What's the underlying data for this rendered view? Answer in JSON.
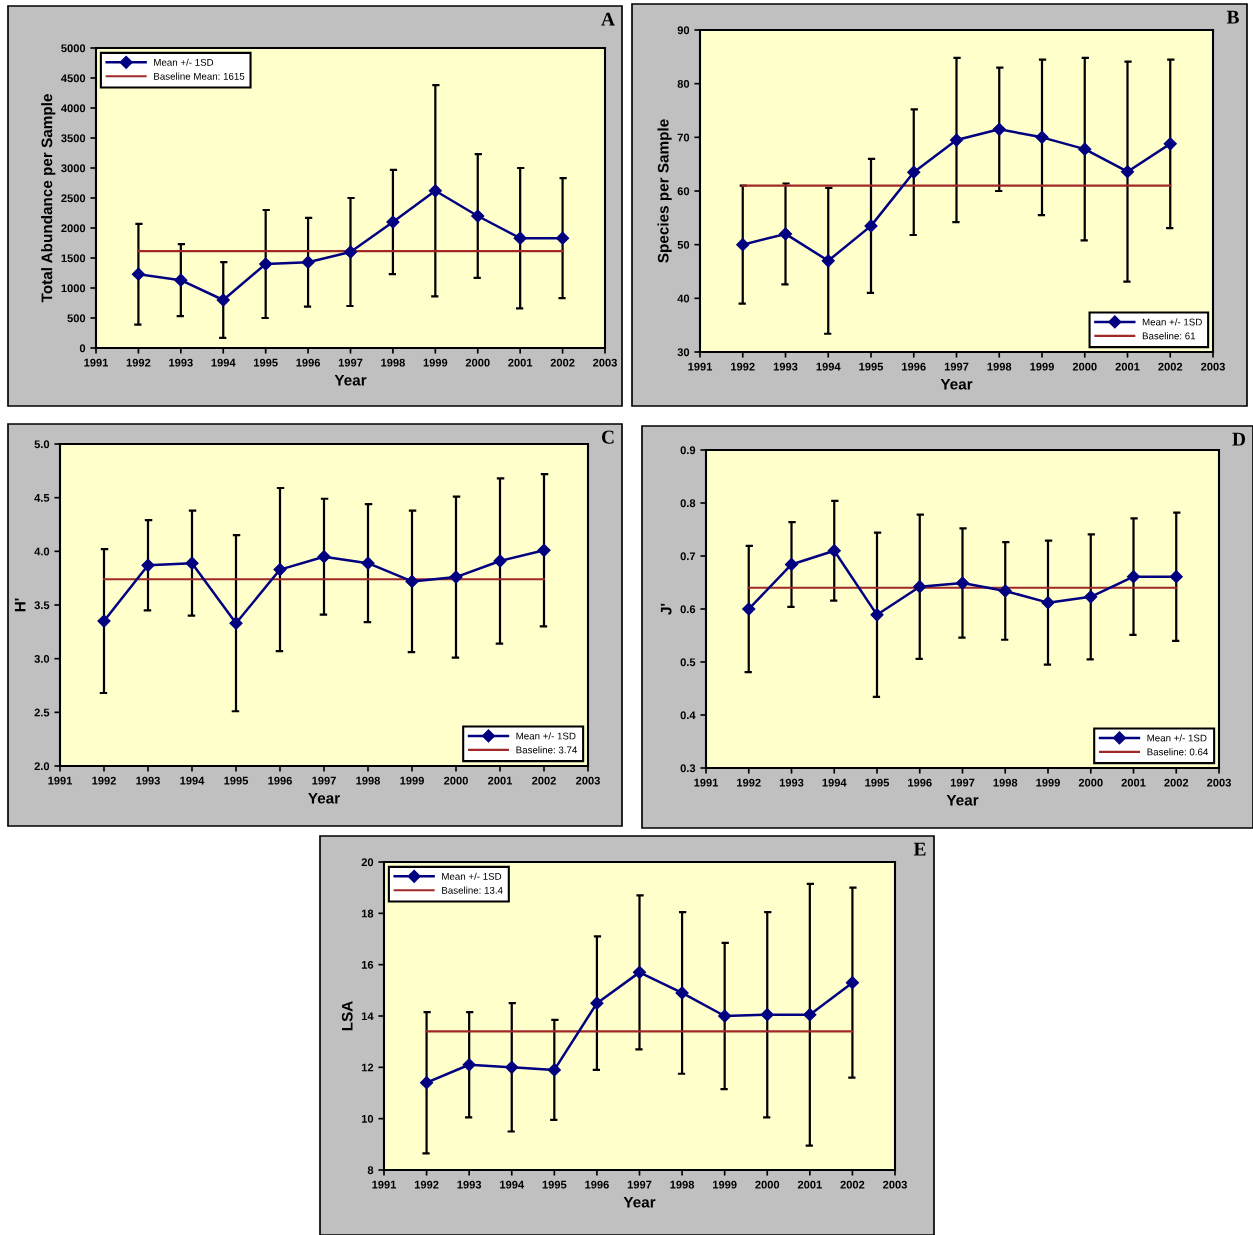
{
  "chart_data": [
    {
      "type": "line",
      "title": "A",
      "xlabel": "Year",
      "ylabel": "Total Abundance per Sample",
      "x": [
        1992,
        1993,
        1994,
        1995,
        1996,
        1997,
        1998,
        1999,
        2000,
        2001,
        2002
      ],
      "xlim": [
        1991,
        2003
      ],
      "xticks": [
        1991,
        1992,
        1993,
        1994,
        1995,
        1996,
        1997,
        1998,
        1999,
        2000,
        2001,
        2002,
        2003
      ],
      "ylim": [
        0,
        5000
      ],
      "yticks": [
        0,
        500,
        1000,
        1500,
        2000,
        2500,
        3000,
        3500,
        4000,
        4500,
        5000
      ],
      "series": [
        {
          "name": "Mean +/- 1SD",
          "color": "#000080",
          "values": [
            1230,
            1130,
            800,
            1400,
            1430,
            1600,
            2100,
            2620,
            2200,
            1830,
            1830
          ],
          "errors": [
            840,
            600,
            630,
            900,
            740,
            900,
            870,
            1760,
            1030,
            1170,
            1000
          ]
        }
      ],
      "ref_lines": [
        {
          "axis": "y",
          "value": 1615,
          "label": "Baseline Mean: 1615",
          "color": "#a02828"
        }
      ],
      "marker": "diamond",
      "line_style": "solid",
      "legend": "top left",
      "grid": false
    },
    {
      "type": "line",
      "title": "B",
      "xlabel": "Year",
      "ylabel": "Species per Sample",
      "x": [
        1992,
        1993,
        1994,
        1995,
        1996,
        1997,
        1998,
        1999,
        2000,
        2001,
        2002
      ],
      "xlim": [
        1991,
        2003
      ],
      "xticks": [
        1991,
        1992,
        1993,
        1994,
        1995,
        1996,
        1997,
        1998,
        1999,
        2000,
        2001,
        2002,
        2003
      ],
      "ylim": [
        30,
        90
      ],
      "yticks": [
        30,
        40,
        50,
        60,
        70,
        80,
        90
      ],
      "series": [
        {
          "name": "Mean +/- 1SD",
          "color": "#000080",
          "values": [
            50,
            52,
            47,
            53.5,
            63.5,
            69.5,
            71.5,
            70,
            67.8,
            63.6,
            68.8
          ],
          "errors": [
            11,
            9.4,
            13.6,
            12.5,
            11.7,
            15.3,
            11.5,
            14.5,
            17,
            20.5,
            15.7
          ]
        }
      ],
      "ref_lines": [
        {
          "axis": "y",
          "value": 61,
          "label": "Baseline: 61",
          "color": "#a02828"
        }
      ],
      "marker": "diamond",
      "line_style": "solid",
      "legend": "bottom right",
      "grid": false
    },
    {
      "type": "line",
      "title": "C",
      "xlabel": "Year",
      "ylabel": "H'",
      "x": [
        1992,
        1993,
        1994,
        1995,
        1996,
        1997,
        1998,
        1999,
        2000,
        2001,
        2002
      ],
      "xlim": [
        1991,
        2003
      ],
      "xticks": [
        1991,
        1992,
        1993,
        1994,
        1995,
        1996,
        1997,
        1998,
        1999,
        2000,
        2001,
        2002,
        2003
      ],
      "ylim": [
        2.0,
        5.0
      ],
      "yticks": [
        {
          "value": 2.0,
          "label": "2.0"
        },
        2.5,
        {
          "value": 3.0,
          "label": "3.0"
        },
        3.5,
        {
          "value": 4.0,
          "label": "4.0"
        },
        4.5,
        {
          "value": 5.0,
          "label": "5.0"
        }
      ],
      "series": [
        {
          "name": "Mean +/- 1SD",
          "color": "#000080",
          "values": [
            3.35,
            3.87,
            3.89,
            3.33,
            3.83,
            3.95,
            3.89,
            3.72,
            3.76,
            3.91,
            4.01
          ],
          "errors": [
            0.67,
            0.42,
            0.49,
            0.82,
            0.76,
            0.54,
            0.55,
            0.66,
            0.75,
            0.77,
            0.71
          ]
        }
      ],
      "ref_lines": [
        {
          "axis": "y",
          "value": 3.74,
          "label": "Baseline: 3.74",
          "color": "#a02828"
        }
      ],
      "marker": "diamond",
      "line_style": "solid",
      "legend": "bottom right",
      "grid": false
    },
    {
      "type": "line",
      "title": "D",
      "xlabel": "Year",
      "ylabel": "J'",
      "x": [
        1992,
        1993,
        1994,
        1995,
        1996,
        1997,
        1998,
        1999,
        2000,
        2001,
        2002
      ],
      "xlim": [
        1991,
        2003
      ],
      "xticks": [
        1991,
        1992,
        1993,
        1994,
        1995,
        1996,
        1997,
        1998,
        1999,
        2000,
        2001,
        2002,
        2003
      ],
      "ylim": [
        0.3,
        0.9
      ],
      "yticks": [
        0.3,
        0.4,
        0.5,
        0.6,
        0.7,
        0.8,
        0.9
      ],
      "series": [
        {
          "name": "Mean +/- 1SD",
          "color": "#000080",
          "values": [
            0.6,
            0.684,
            0.71,
            0.589,
            0.642,
            0.649,
            0.634,
            0.612,
            0.623,
            0.661,
            0.661
          ],
          "errors": [
            0.119,
            0.08,
            0.094,
            0.155,
            0.136,
            0.103,
            0.092,
            0.117,
            0.118,
            0.11,
            0.121
          ]
        }
      ],
      "ref_lines": [
        {
          "axis": "y",
          "value": 0.64,
          "label": "Baseline: 0.64",
          "color": "#a02828"
        }
      ],
      "marker": "diamond",
      "line_style": "solid",
      "legend": "bottom right",
      "grid": false
    },
    {
      "type": "line",
      "title": "E",
      "xlabel": "Year",
      "ylabel": "LSA",
      "x": [
        1992,
        1993,
        1994,
        1995,
        1996,
        1997,
        1998,
        1999,
        2000,
        2001,
        2002
      ],
      "xlim": [
        1991,
        2003
      ],
      "xticks": [
        1991,
        1992,
        1993,
        1994,
        1995,
        1996,
        1997,
        1998,
        1999,
        2000,
        2001,
        2002,
        2003
      ],
      "ylim": [
        8,
        20
      ],
      "yticks": [
        8,
        10,
        12,
        14,
        16,
        18,
        20
      ],
      "series": [
        {
          "name": "Mean +/- 1SD",
          "color": "#000080",
          "values": [
            11.4,
            12.1,
            12.0,
            11.9,
            14.5,
            15.7,
            14.9,
            14.0,
            14.05,
            14.05,
            15.3
          ],
          "errors": [
            2.75,
            2.05,
            2.5,
            1.95,
            2.6,
            3.0,
            3.15,
            2.85,
            4.0,
            5.1,
            3.7
          ]
        }
      ],
      "ref_lines": [
        {
          "axis": "y",
          "value": 13.4,
          "label": "Baseline: 13.4",
          "color": "#a02828"
        }
      ],
      "marker": "diamond",
      "line_style": "solid",
      "legend": "top left",
      "grid": false
    }
  ]
}
